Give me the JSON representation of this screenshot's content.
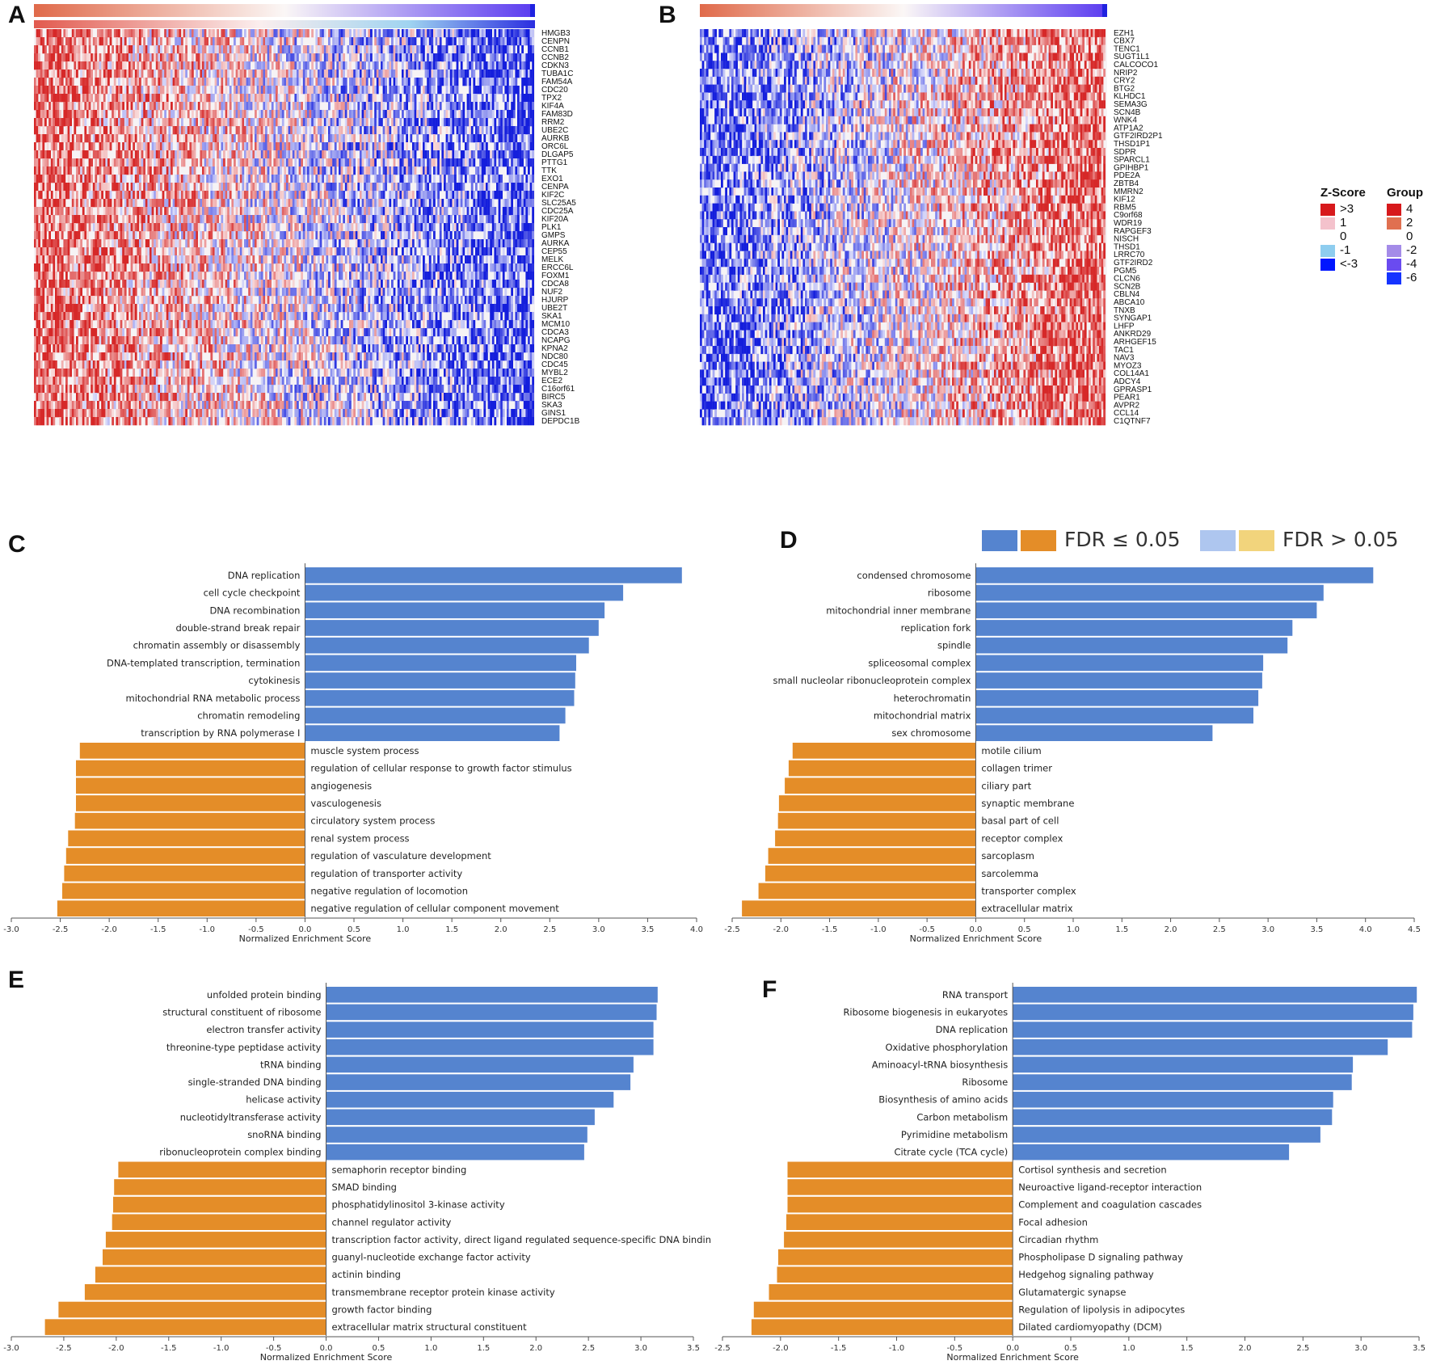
{
  "panel_labels": [
    "A",
    "B",
    "C",
    "D",
    "E",
    "F"
  ],
  "colors": {
    "pos": "#5584cf",
    "neg": "#e48d28",
    "pos_light": "#aec6ef",
    "neg_light": "#f2d47c",
    "hm_red": "#d33f3f",
    "hm_blue": "#1f2bd6"
  },
  "heatmap_legend": {
    "zscore_title": "Z-Score",
    "zscore_items": [
      {
        "label": ">3",
        "color": "#d7191c"
      },
      {
        "label": "1",
        "color": "#f4c2cc"
      },
      {
        "label": "0",
        "color": ""
      },
      {
        "label": "-1",
        "color": "#8ecdef"
      },
      {
        "label": "<-3",
        "color": "#0016ff"
      }
    ],
    "group_title": "Group",
    "group_items": [
      {
        "label": "4",
        "color": "#d7191c"
      },
      {
        "label": "2",
        "color": "#e07050"
      },
      {
        "label": "0",
        "color": ""
      },
      {
        "label": "-2",
        "color": "#a48be8"
      },
      {
        "label": "-4",
        "color": "#6a4bf0"
      },
      {
        "label": "-6",
        "color": "#1533ff"
      }
    ]
  },
  "fdr_legend": {
    "sig_label": "FDR ≤ 0.05",
    "nonsig_label": "FDR > 0.05"
  },
  "heatmap_a": {
    "genes": [
      "HMGB3",
      "CENPN",
      "CCNB1",
      "CCNB2",
      "CDKN3",
      "TUBA1C",
      "FAM54A",
      "CDC20",
      "TPX2",
      "KIF4A",
      "FAM83D",
      "RRM2",
      "UBE2C",
      "AURKB",
      "ORC6L",
      "DLGAP5",
      "PTTG1",
      "TTK",
      "EXO1",
      "CENPA",
      "KIF2C",
      "SLC25A5",
      "CDC25A",
      "KIF20A",
      "PLK1",
      "GMPS",
      "AURKA",
      "CEP55",
      "MELK",
      "ERCC6L",
      "FOXM1",
      "CDCA8",
      "NUF2",
      "HJURP",
      "UBE2T",
      "SKA1",
      "MCM10",
      "CDCA3",
      "NCAPG",
      "KPNA2",
      "NDC80",
      "CDC45",
      "MYBL2",
      "ECE2",
      "C16orf61",
      "BIRC5",
      "SKA3",
      "GINS1",
      "DEPDC1B"
    ]
  },
  "heatmap_b": {
    "genes": [
      "EZH1",
      "CBX7",
      "TENC1",
      "SUGT1L1",
      "CALCOCO1",
      "NRIP2",
      "CRY2",
      "BTG2",
      "KLHDC1",
      "SEMA3G",
      "SCN4B",
      "WNK4",
      "ATP1A2",
      "GTF2IRD2P1",
      "THSD1P1",
      "SDPR",
      "SPARCL1",
      "GPIHBP1",
      "PDE2A",
      "ZBTB4",
      "MMRN2",
      "KIF12",
      "RBM5",
      "C9orf68",
      "WDR19",
      "RAPGEF3",
      "NISCH",
      "THSD1",
      "LRRC70",
      "GTF2IRD2",
      "PGM5",
      "CLCN6",
      "SCN2B",
      "CBLN4",
      "ABCA10",
      "TNXB",
      "SYNGAP1",
      "LHFP",
      "ANKRD29",
      "ARHGEF15",
      "TAC1",
      "NAV3",
      "MYOZ3",
      "COL14A1",
      "ADCY4",
      "GPRASP1",
      "PEAR1",
      "AVPR2",
      "CCL14",
      "C1QTNF7"
    ]
  },
  "chart_data": [
    {
      "panel": "C",
      "type": "bar",
      "orientation": "horizontal",
      "xlabel": "Normalized Enrichment Score",
      "xlim": [
        -3.0,
        4.0
      ],
      "ticks": [
        "-3.0",
        "-2.5",
        "-2.0",
        "-1.5",
        "-1.0",
        "-0.5",
        "0.0",
        "0.5",
        "1.0",
        "1.5",
        "2.0",
        "2.5",
        "3.0",
        "3.5",
        "4.0"
      ],
      "categories": [
        "DNA replication",
        "cell cycle checkpoint",
        "DNA recombination",
        "double-strand break repair",
        "chromatin assembly or disassembly",
        "DNA-templated transcription, termination",
        "cytokinesis",
        "mitochondrial RNA metabolic process",
        "chromatin remodeling",
        "transcription by RNA polymerase I",
        "muscle system process",
        "regulation of cellular response to growth factor stimulus",
        "angiogenesis",
        "vasculogenesis",
        "circulatory system process",
        "renal system process",
        "regulation of vasculature development",
        "regulation of transporter activity",
        "negative regulation of locomotion",
        "negative regulation of cellular component movement"
      ],
      "values": [
        3.85,
        3.25,
        3.06,
        3.0,
        2.9,
        2.77,
        2.76,
        2.75,
        2.66,
        2.6,
        -2.3,
        -2.34,
        -2.34,
        -2.34,
        -2.35,
        -2.42,
        -2.44,
        -2.46,
        -2.48,
        -2.53
      ]
    },
    {
      "panel": "D",
      "type": "bar",
      "orientation": "horizontal",
      "xlabel": "Normalized Enrichment Score",
      "xlim": [
        -2.5,
        4.5
      ],
      "ticks": [
        "-2.5",
        "-2.0",
        "-1.5",
        "-1.0",
        "-0.5",
        "0.0",
        "0.5",
        "1.0",
        "1.5",
        "2.0",
        "2.5",
        "3.0",
        "3.5",
        "4.0",
        "4.5"
      ],
      "categories": [
        "condensed chromosome",
        "ribosome",
        "mitochondrial inner membrane",
        "replication fork",
        "spindle",
        "spliceosomal complex",
        "small nucleolar ribonucleoprotein complex",
        "heterochromatin",
        "mitochondrial matrix",
        "sex chromosome",
        "motile cilium",
        "collagen trimer",
        "ciliary part",
        "synaptic membrane",
        "basal part of cell",
        "receptor complex",
        "sarcoplasm",
        "sarcolemma",
        "transporter complex",
        "extracellular matrix"
      ],
      "values": [
        4.08,
        3.57,
        3.5,
        3.25,
        3.2,
        2.95,
        2.94,
        2.9,
        2.85,
        2.43,
        -1.88,
        -1.92,
        -1.96,
        -2.02,
        -2.03,
        -2.06,
        -2.13,
        -2.16,
        -2.23,
        -2.4
      ]
    },
    {
      "panel": "E",
      "type": "bar",
      "orientation": "horizontal",
      "xlabel": "Normalized Enrichment Score",
      "xlim": [
        -3.0,
        3.5
      ],
      "ticks": [
        "-3.0",
        "-2.5",
        "-2.0",
        "-1.5",
        "-1.0",
        "-0.5",
        "0.0",
        "0.5",
        "1.0",
        "1.5",
        "2.0",
        "2.5",
        "3.0",
        "3.5"
      ],
      "categories": [
        "unfolded protein binding",
        "structural constituent of ribosome",
        "electron transfer activity",
        "threonine-type peptidase activity",
        "tRNA binding",
        "single-stranded DNA binding",
        "helicase activity",
        "nucleotidyltransferase activity",
        "snoRNA binding",
        "ribonucleoprotein complex binding",
        "semaphorin receptor binding",
        "SMAD binding",
        "phosphatidylinositol 3-kinase activity",
        "channel regulator activity",
        "transcription factor activity, direct ligand regulated sequence-specific DNA binding",
        "guanyl-nucleotide exchange factor activity",
        "actinin binding",
        "transmembrane receptor protein kinase activity",
        "growth factor binding",
        "extracellular matrix structural constituent"
      ],
      "values": [
        3.16,
        3.15,
        3.12,
        3.12,
        2.93,
        2.9,
        2.74,
        2.56,
        2.49,
        2.46,
        -1.98,
        -2.02,
        -2.03,
        -2.04,
        -2.1,
        -2.13,
        -2.2,
        -2.3,
        -2.55,
        -2.68
      ]
    },
    {
      "panel": "F",
      "type": "bar",
      "orientation": "horizontal",
      "xlabel": "Normalized Enrichment Score",
      "xlim": [
        -2.5,
        3.5
      ],
      "ticks": [
        "-2.5",
        "-2.0",
        "-1.5",
        "-1.0",
        "-0.5",
        "0.0",
        "0.5",
        "1.0",
        "1.5",
        "2.0",
        "2.5",
        "3.0",
        "3.5"
      ],
      "categories": [
        "RNA transport",
        "Ribosome biogenesis in eukaryotes",
        "DNA replication",
        "Oxidative phosphorylation",
        "Aminoacyl-tRNA biosynthesis",
        "Ribosome",
        "Biosynthesis of amino acids",
        "Carbon metabolism",
        "Pyrimidine metabolism",
        "Citrate cycle (TCA cycle)",
        "Cortisol synthesis and secretion",
        "Neuroactive ligand-receptor interaction",
        "Complement and coagulation cascades",
        "Focal adhesion",
        "Circadian rhythm",
        "Phospholipase D signaling pathway",
        "Hedgehog signaling pathway",
        "Glutamatergic synapse",
        "Regulation of lipolysis in adipocytes",
        "Dilated cardiomyopathy (DCM)"
      ],
      "values": [
        3.48,
        3.45,
        3.44,
        3.23,
        2.93,
        2.92,
        2.76,
        2.75,
        2.65,
        2.38,
        -1.94,
        -1.94,
        -1.94,
        -1.95,
        -1.97,
        -2.02,
        -2.03,
        -2.1,
        -2.23,
        -2.25
      ]
    }
  ]
}
